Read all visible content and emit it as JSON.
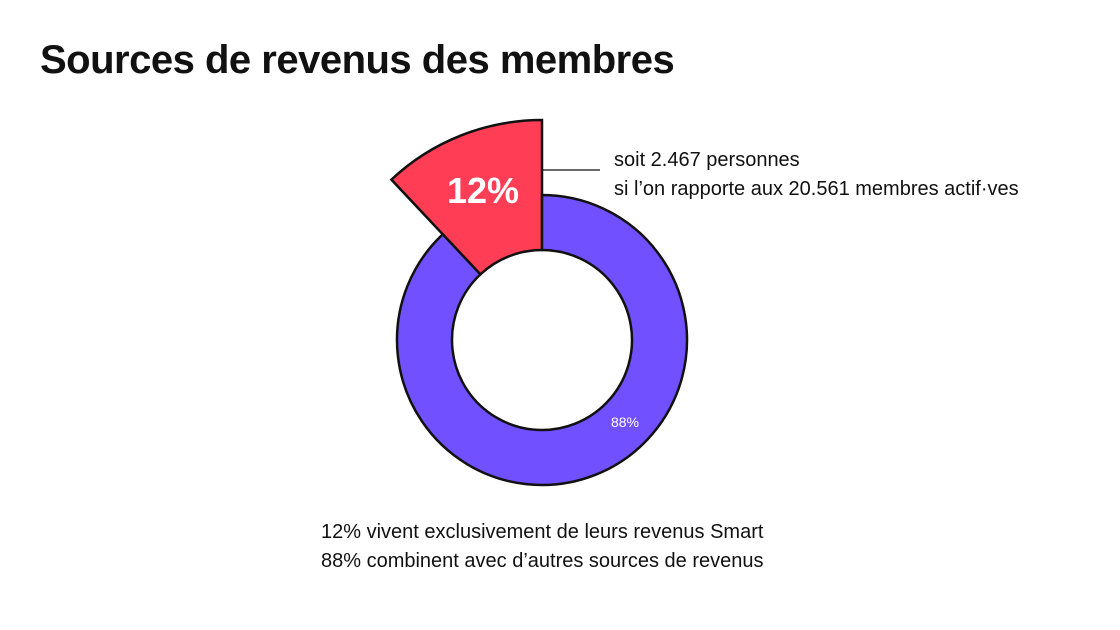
{
  "chart_data": {
    "type": "pie",
    "title": "Sources de revenus des membres",
    "donut": true,
    "slices": [
      {
        "label": "12%",
        "value": 12,
        "color": "#ff3d55",
        "exploded": true
      },
      {
        "label": "88%",
        "value": 88,
        "color": "#7150ff",
        "exploded": false
      }
    ],
    "annotation": [
      "soit 2.467 personnes",
      "si l’on rapporte aux 20.561 membres actif·ves"
    ],
    "footer": [
      "12% vivent exclusivement de leurs revenus Smart",
      "88% combinent avec d’autres sources de revenus"
    ]
  }
}
